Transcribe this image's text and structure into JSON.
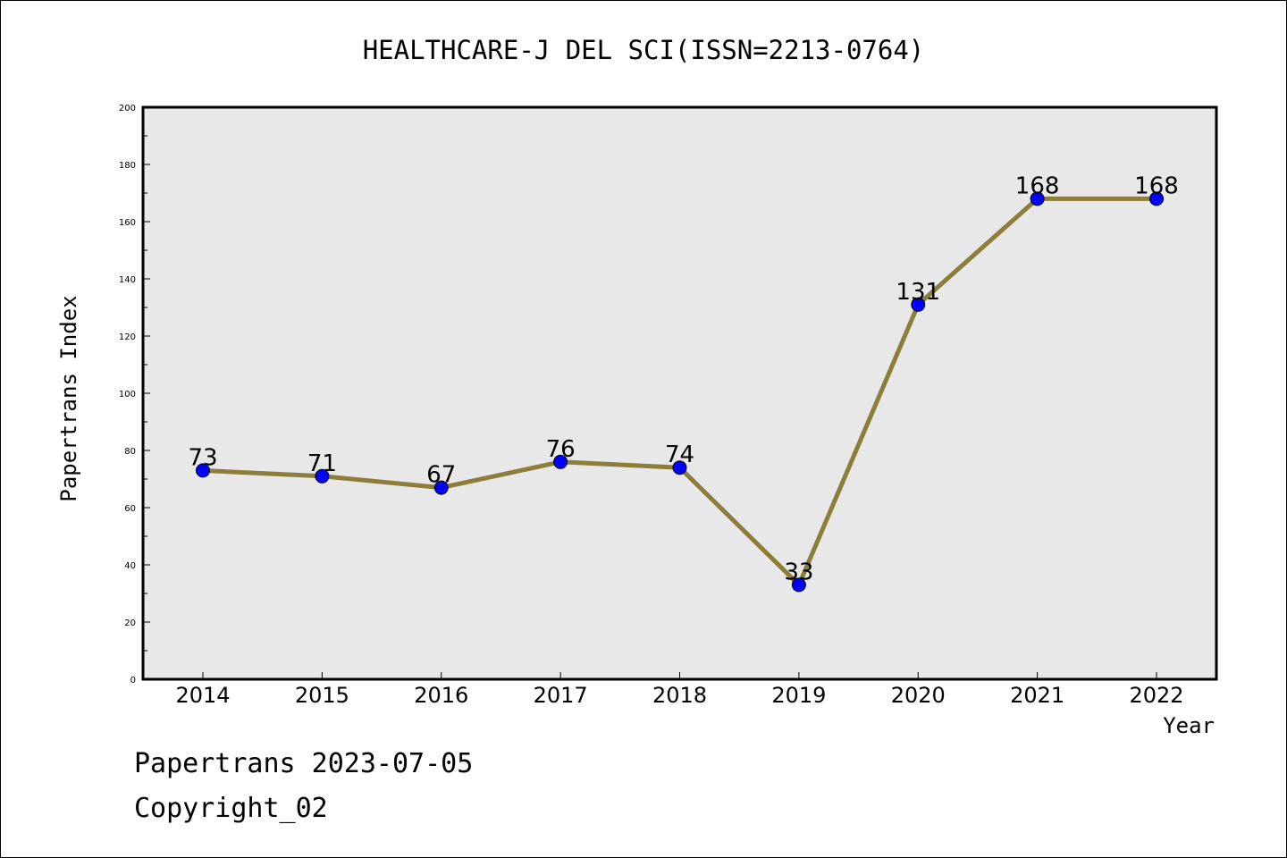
{
  "chart_data": {
    "type": "line",
    "title": "HEALTHCARE-J DEL SCI(ISSN=2213-0764)",
    "xlabel": "Year",
    "ylabel": "Papertrans Index",
    "categories": [
      "2014",
      "2015",
      "2016",
      "2017",
      "2018",
      "2019",
      "2020",
      "2021",
      "2022"
    ],
    "values": [
      73,
      71,
      67,
      76,
      74,
      33,
      131,
      168,
      168
    ],
    "data_labels": [
      "73",
      "71",
      "67",
      "76",
      "74",
      "33",
      "131",
      "168",
      "168"
    ],
    "ylim": [
      0,
      200
    ],
    "yticks": [
      "0",
      "20",
      "40",
      "60",
      "80",
      "100",
      "120",
      "140",
      "160",
      "180",
      "200"
    ],
    "grid": false,
    "legend": "none",
    "colors": {
      "line": "#8c7d3a",
      "marker": "#0000ff",
      "plot_background": "#e8e8e8"
    }
  },
  "footer": {
    "line1": "Papertrans 2023-07-05",
    "line2": "Copyright_02"
  }
}
